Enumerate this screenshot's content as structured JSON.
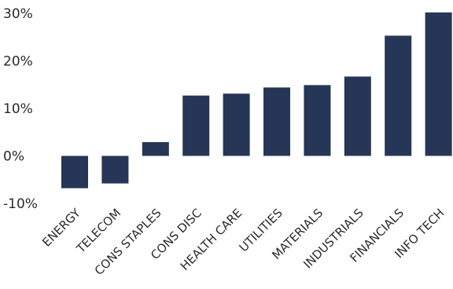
{
  "chart_data": {
    "type": "bar",
    "title": "",
    "xlabel": "",
    "ylabel": "",
    "categories": [
      "ENERGY",
      "TELECOM",
      "CONS STAPLES",
      "CONS DISC",
      "HEALTH CARE",
      "UTILITIES",
      "MATERIALS",
      "INDUSTRIALS",
      "FINANCIALS",
      "INFO TECH"
    ],
    "values": [
      -6.8,
      -5.8,
      2.9,
      12.7,
      13.1,
      14.4,
      14.9,
      16.7,
      25.3,
      30.2
    ],
    "ylim": [
      -10,
      30
    ],
    "yticks": [
      -10,
      0,
      10,
      20,
      30
    ],
    "ytick_labels": [
      "-10%",
      "0%",
      "10%",
      "20%",
      "30%"
    ],
    "grid": false,
    "legend": "none",
    "bar_color": "#263656"
  }
}
